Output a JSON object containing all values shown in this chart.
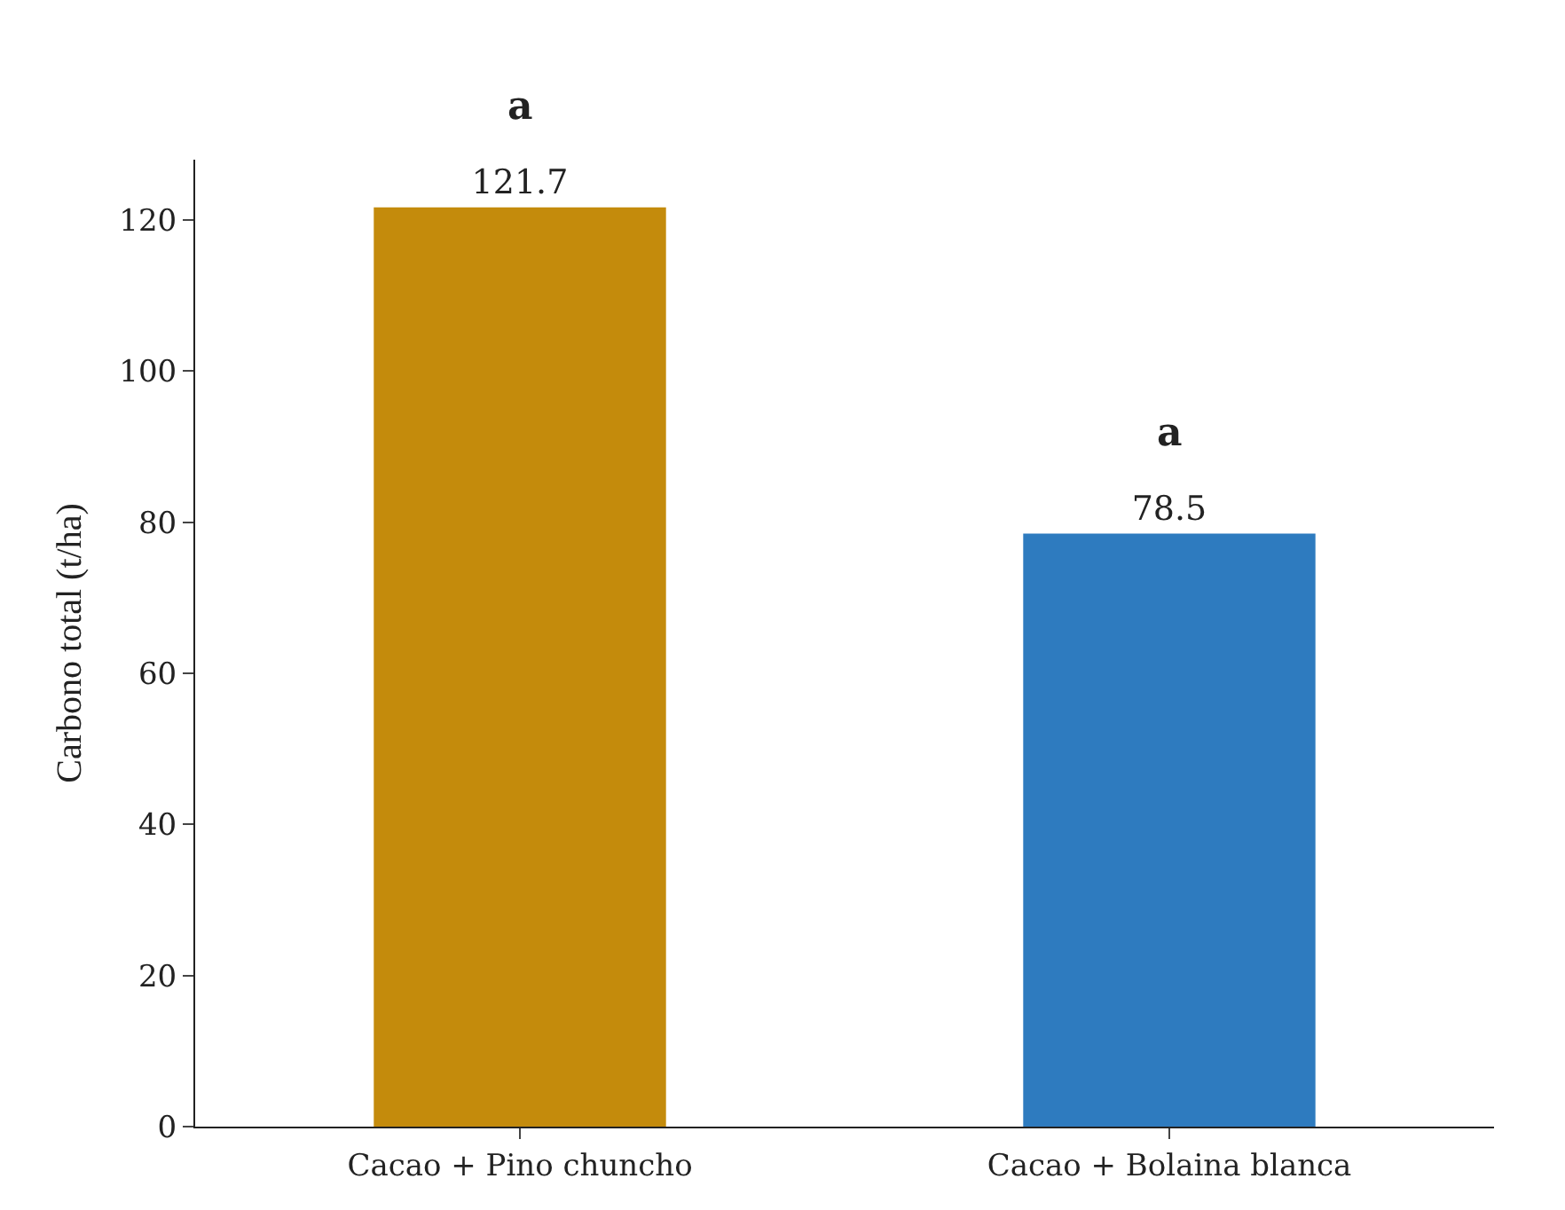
{
  "chart_data": {
    "type": "bar",
    "ylabel": "Carbono total (t/ha)",
    "categories": [
      "Cacao + Pino chuncho",
      "Cacao + Bolaina blanca"
    ],
    "values": [
      121.7,
      78.5
    ],
    "colors": [
      "#c48b0c",
      "#2e7bbf"
    ],
    "ylim": [
      0,
      128
    ],
    "yticks": [
      0,
      20,
      40,
      60,
      80,
      100,
      120
    ],
    "data_labels": true,
    "annotations": [
      {
        "text": "a",
        "x": "Cacao + Pino chuncho",
        "y": 121.7
      },
      {
        "text": "a",
        "x": "Cacao + Bolaina blanca",
        "y": 78.5
      }
    ]
  }
}
